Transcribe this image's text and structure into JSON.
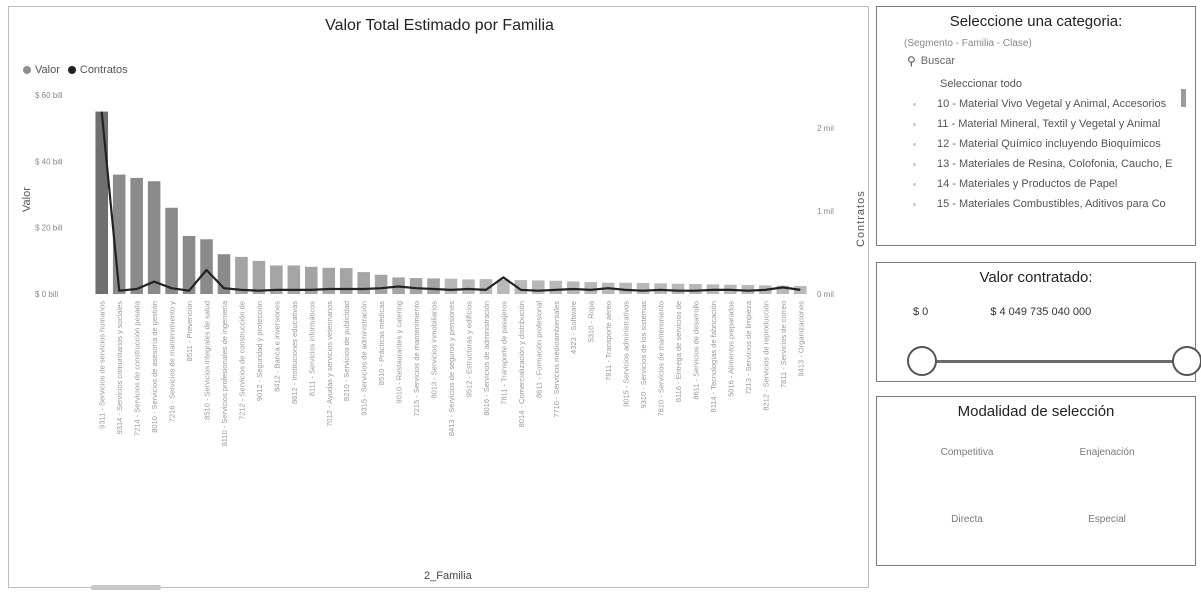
{
  "chart_data": {
    "type": "bar",
    "title": "Valor Total Estimado por Familia",
    "xlabel": "2_Familia",
    "ylabel": "Valor",
    "y2label": "Contratos",
    "legend": [
      "Valor",
      "Contratos"
    ],
    "legend_position": "top-left",
    "colors": {
      "Valor": "#8f8f8f",
      "Contratos": "#222222"
    },
    "yticks": [
      "$ 60 bill",
      "$ 40 bill",
      "$ 20 bill",
      "$ 0 bill"
    ],
    "y2ticks": [
      "2 mil",
      "1 mil",
      "0 mil"
    ],
    "ylim": [
      0,
      60
    ],
    "y2lim": [
      0,
      2.4
    ],
    "categories": [
      "9311 - Servicios de servicios humanos",
      "9314 - Servicios comunitarios y sociales",
      "7214 - Servicios de construcción pesada",
      "8010 - Servicios de asesoría de gestión",
      "7216 - Servicios de mantenimiento y",
      "8511 - Prevención",
      "8510 - Servicios integrales de salud",
      "8110 - Servicios profesionales de ingeniería",
      "7212 - Servicios de construcción de",
      "9012 - Seguridad y protección",
      "8412 - Banca e inversiones",
      "8612 - Instituciones educativas",
      "8111 - Servicios informáticos",
      "7012 - Ayudas y servicios veterinarios",
      "8210 - Servicios de publicidad",
      "9315 - Servicios de administración",
      "8510 - Prácticas médicas",
      "9010 - Restaurantes y catering",
      "7215 - Servicios de mantenimiento",
      "8013 - Servicios inmobiliarios",
      "8413 - Servicios de seguros y pensiones",
      "9512 - Estructuras y edificios",
      "8016 - Servicios de administración",
      "7811 - Transporte de pasajeros",
      "8014 - Comercialización y distribución",
      "8611 - Formación profesional",
      "7710 - Servicios medioambientales",
      "4323 - Software",
      "5310 - Ropa",
      "7811 - Transporte aéreo",
      "8015 - Servicios administrativos",
      "9310 - Servicios de los sistemas",
      "7810 - Servicios de mantenimiento",
      "8116 - Entrega de servicios de",
      "8611 - Servicios de desarrollo",
      "8114 - Tecnologías de fabricación",
      "5016 - Alimentos preparados",
      "7213 - Servicios de limpieza",
      "8212 - Servicios de reproducción",
      "7811 - Servicios de correo",
      "9413 - Organizaciones"
    ],
    "series": [
      {
        "name": "Valor",
        "axis": "left",
        "values": [
          55,
          36,
          35,
          34,
          26,
          17.5,
          16.5,
          12,
          11.2,
          10,
          8.6,
          8.6,
          8.2,
          7.9,
          7.8,
          6.6,
          5.8,
          5,
          4.8,
          4.7,
          4.6,
          4.4,
          4.5,
          4.3,
          4.2,
          4.1,
          4,
          3.8,
          3.6,
          3.4,
          3.4,
          3.3,
          3.2,
          3.1,
          3,
          2.9,
          2.8,
          2.7,
          2.6,
          2.5,
          2.4
        ]
      },
      {
        "name": "Contratos",
        "axis": "right",
        "values": [
          2.2,
          0.04,
          0.06,
          0.15,
          0.07,
          0.04,
          0.29,
          0.07,
          0.05,
          0.04,
          0.05,
          0.05,
          0.05,
          0.06,
          0.06,
          0.06,
          0.07,
          0.09,
          0.07,
          0.06,
          0.05,
          0.06,
          0.05,
          0.2,
          0.05,
          0.04,
          0.05,
          0.06,
          0.05,
          0.07,
          0.05,
          0.04,
          0.05,
          0.04,
          0.04,
          0.05,
          0.05,
          0.04,
          0.05,
          0.08,
          0.05
        ]
      }
    ]
  },
  "category_panel": {
    "title": "Seleccione una categoria:",
    "hierarchy": "(Segmento - Familia - Clase)",
    "search_placeholder": "Buscar",
    "select_all": "Seleccionar todo",
    "items": [
      "10 - Material Vivo Vegetal y Animal, Accesorios",
      "11 - Material Mineral, Textil y Vegetal y Animal",
      "12 - Material Químico incluyendo Bioquímicos",
      "13 - Materiales de Resina, Colofonia, Caucho, E",
      "14 - Materiales y Productos de Papel",
      "15 - Materiales Combustibles, Aditivos para Co"
    ]
  },
  "value_panel": {
    "title": "Valor contratado:",
    "min_label": "$ 0",
    "max_label": "$ 4 049 735 040 000"
  },
  "mode_panel": {
    "title": "Modalidad de selección",
    "options": [
      "Competitiva",
      "Enajenación",
      "Directa",
      "Especial"
    ]
  }
}
